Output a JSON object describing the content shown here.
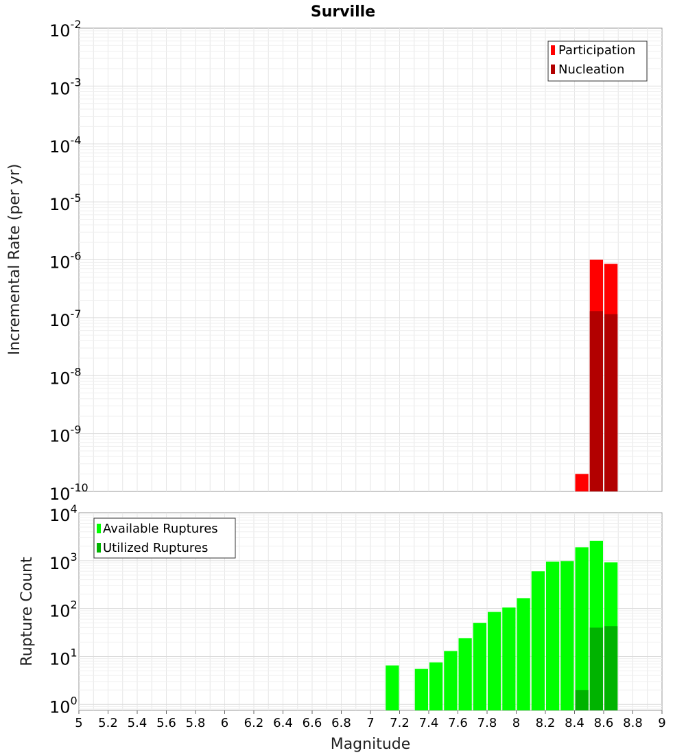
{
  "chart_data": [
    {
      "type": "bar",
      "title": "Surville",
      "ylabel": "Incremental Rate (per yr)",
      "xlabel": "",
      "yscale": "log",
      "xlim": [
        5,
        9
      ],
      "ylim": [
        1e-10,
        0.01
      ],
      "y_tick_exponents": [
        -2,
        -3,
        -4,
        -5,
        -6,
        -7,
        -8,
        -9,
        -10
      ],
      "grid": true,
      "legend_position": "top-right",
      "series": [
        {
          "name": "Participation",
          "color": "#ff0000",
          "x": [
            8.45,
            8.55,
            8.65
          ],
          "values": [
            2e-10,
            1e-06,
            8.5e-07
          ]
        },
        {
          "name": "Nucleation",
          "color": "#b20000",
          "x": [
            8.55,
            8.65
          ],
          "values": [
            1.3e-07,
            1.15e-07
          ]
        }
      ]
    },
    {
      "type": "bar",
      "title": "",
      "ylabel": "Rupture Count",
      "xlabel": "Magnitude",
      "yscale": "log",
      "xlim": [
        5,
        9
      ],
      "ylim": [
        0.75,
        10000
      ],
      "y_tick_exponents": [
        4,
        3,
        2,
        1,
        0
      ],
      "x_ticks": [
        "5",
        "5.2",
        "5.4",
        "5.6",
        "5.8",
        "6",
        "6.2",
        "6.4",
        "6.6",
        "6.8",
        "7",
        "7.2",
        "7.4",
        "7.6",
        "7.8",
        "8",
        "8.2",
        "8.4",
        "8.6",
        "8.8",
        "9"
      ],
      "grid": true,
      "legend_position": "top-left",
      "series": [
        {
          "name": "Available Ruptures",
          "color": "#00ff00",
          "x": [
            7.15,
            7.35,
            7.45,
            7.55,
            7.65,
            7.75,
            7.85,
            7.95,
            8.05,
            8.15,
            8.25,
            8.35,
            8.45,
            8.55,
            8.65
          ],
          "values": [
            6.5,
            5.5,
            7.5,
            13,
            24,
            50,
            85,
            105,
            165,
            600,
            950,
            980,
            1900,
            2600,
            920
          ]
        },
        {
          "name": "Utilized Ruptures",
          "color": "#00b300",
          "x": [
            8.45,
            8.55,
            8.65
          ],
          "values": [
            2,
            40,
            43
          ]
        }
      ]
    }
  ]
}
